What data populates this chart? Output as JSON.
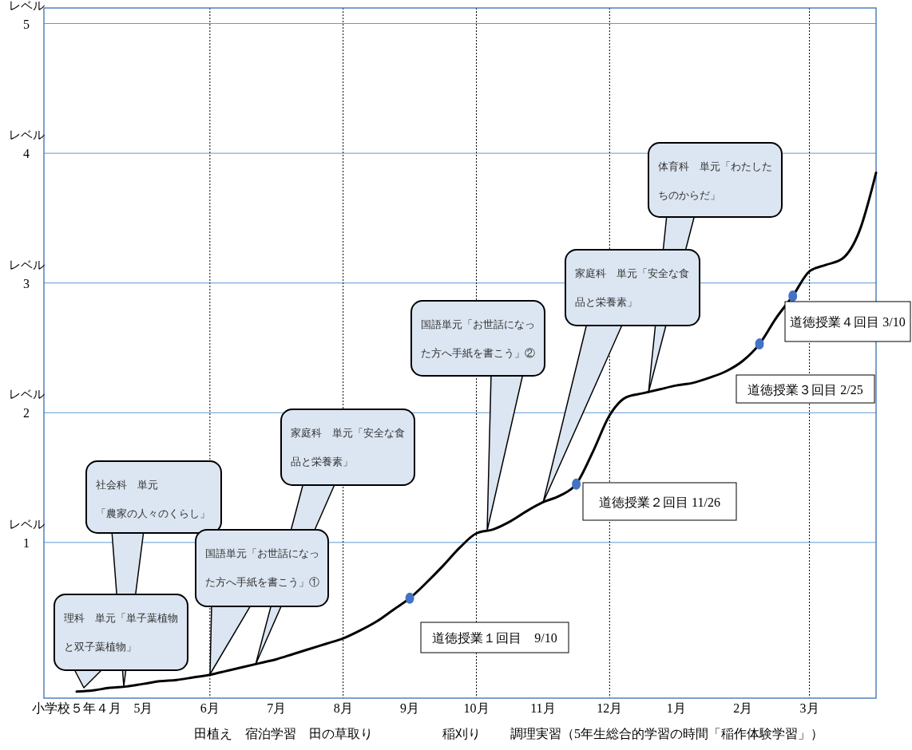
{
  "chart_data": {
    "type": "line",
    "ylabel": "レベル",
    "categories": [
      "小学校５年４月",
      null,
      null,
      null,
      "5月",
      null,
      null,
      null,
      "6月",
      null,
      null,
      null,
      "7月",
      null,
      null,
      null,
      "8月",
      null,
      null,
      null,
      "9月",
      null,
      null,
      null,
      "10月",
      null,
      null,
      null,
      "11月",
      null,
      null,
      null,
      "12月",
      null,
      null,
      null,
      "1月",
      null,
      null,
      null,
      "2月",
      null,
      null,
      null,
      "3月",
      null,
      null,
      null,
      null
    ],
    "ylim": [
      -0.2,
      5.12
    ],
    "yticks": [
      1,
      2,
      3,
      4,
      5
    ],
    "grid": "y",
    "legend": false,
    "series": [
      {
        "color": "#000000",
        "values": [
          -0.15,
          -0.14,
          -0.12,
          -0.11,
          -0.09,
          -0.07,
          -0.06,
          -0.04,
          -0.02,
          0.01,
          0.04,
          0.07,
          0.1,
          0.14,
          0.18,
          0.22,
          0.26,
          0.32,
          0.39,
          0.48,
          0.57,
          0.69,
          0.82,
          0.96,
          1.07,
          1.1,
          1.16,
          1.24,
          1.31,
          1.36,
          1.45,
          1.7,
          1.98,
          2.12,
          2.15,
          2.18,
          2.21,
          2.23,
          2.27,
          2.32,
          2.4,
          2.53,
          2.73,
          2.9,
          3.09,
          3.14,
          3.19,
          3.4,
          3.85
        ]
      },
      {
        "type": "scatter",
        "color": "#4472c4",
        "values": [
          null,
          null,
          null,
          null,
          null,
          null,
          null,
          null,
          null,
          null,
          null,
          null,
          null,
          null,
          null,
          null,
          null,
          null,
          null,
          null,
          0.57,
          null,
          null,
          null,
          null,
          null,
          null,
          null,
          null,
          null,
          1.45,
          null,
          null,
          null,
          null,
          null,
          null,
          null,
          null,
          null,
          null,
          2.53,
          null,
          2.9,
          null,
          null,
          null,
          null,
          null
        ]
      }
    ],
    "ref_lines": [
      {
        "axis": "x",
        "value": "6月",
        "color": "#000000",
        "line_style": "dotted"
      },
      {
        "axis": "x",
        "value": "8月",
        "color": "#000000",
        "line_style": "dotted"
      },
      {
        "axis": "x",
        "value": "10月",
        "color": "#000000",
        "line_style": "dotted"
      },
      {
        "axis": "x",
        "value": "12月",
        "color": "#000000",
        "line_style": "dotted"
      },
      {
        "axis": "x",
        "value": "3月",
        "color": "#000000",
        "line_style": "dotted"
      }
    ],
    "annotations": [
      "理科　単元「単子葉植物と双子葉植物」",
      "社会科　単元「農家の人々のくらし」",
      "国語単元「お世話になった方へ手紙を書こう」①",
      "家庭科　単元「安全な食品と栄養素」",
      "国語単元「お世話になった方へ手紙を書こう」②",
      "家庭科　単元「安全な食品と栄養素」",
      "体育科　単元「わたしたちのからだ」",
      "道徳授業１回目　9/10",
      "道徳授業２回目 11/26",
      "道徳授業３回目 2/25",
      "道徳授業４回目 3/10",
      "田植え　宿泊学習　田の草取り",
      "稲刈り",
      "調理実習（5年生総合的学習の時間「稲作体験学習」）"
    ]
  }
}
